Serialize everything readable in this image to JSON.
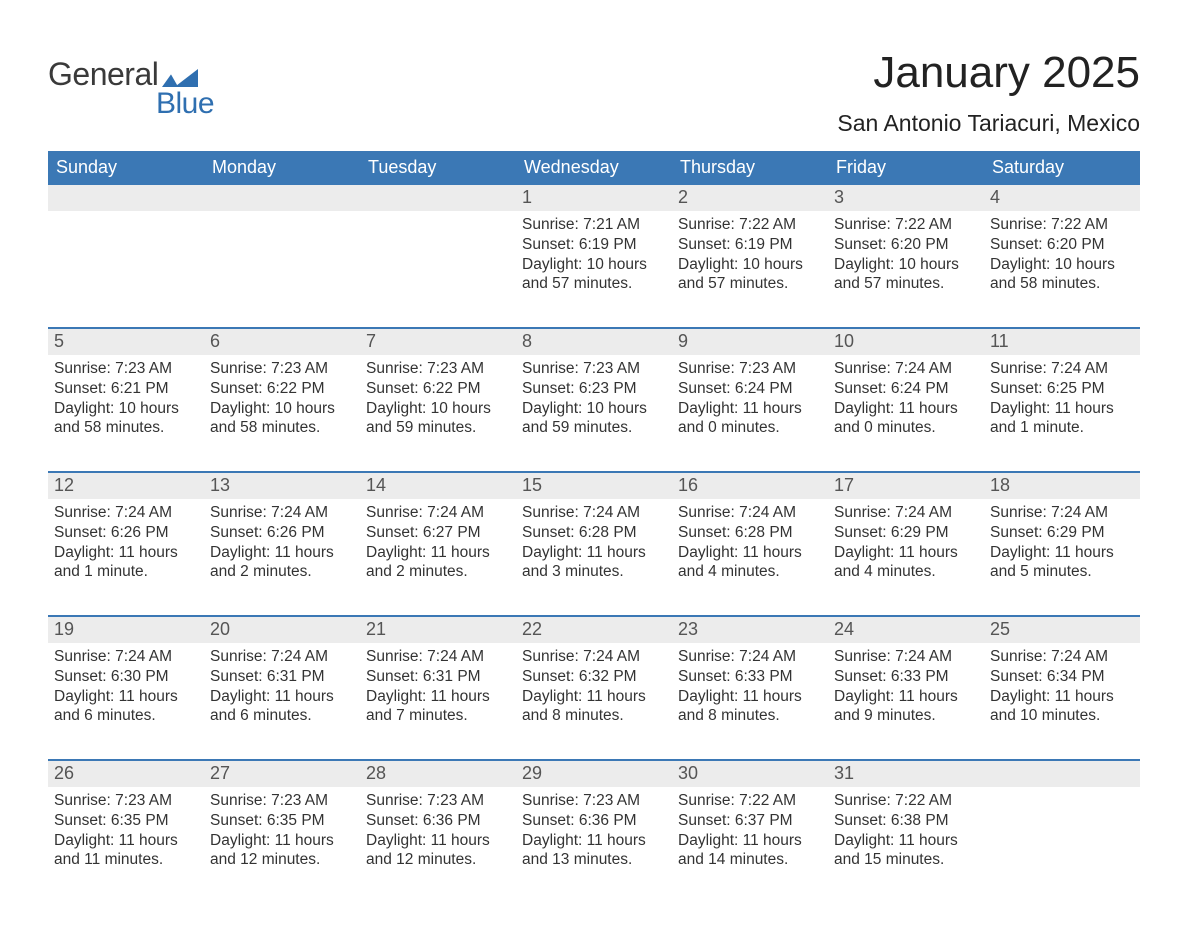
{
  "logo": {
    "line1": "General",
    "line2": "Blue",
    "accent": "#2f6fb0",
    "text": "#3a3a3a"
  },
  "title": "January 2025",
  "location": "San Antonio Tariacuri, Mexico",
  "colors": {
    "header_bg": "#3b78b5",
    "header_fg": "#ffffff",
    "daynum_bg": "#ececec",
    "week_divider": "#3b78b5",
    "body_text": "#333333",
    "page_bg": "#ffffff"
  },
  "fonts": {
    "title_pt": 44,
    "location_pt": 23,
    "header_pt": 18,
    "daynum_pt": 18,
    "body_pt": 15.5
  },
  "weekdays": [
    "Sunday",
    "Monday",
    "Tuesday",
    "Wednesday",
    "Thursday",
    "Friday",
    "Saturday"
  ],
  "labels": {
    "sunrise": "Sunrise:",
    "sunset": "Sunset:",
    "daylight": "Daylight:"
  },
  "weeks": [
    [
      null,
      null,
      null,
      {
        "n": "1",
        "sunrise": "7:21 AM",
        "sunset": "6:19 PM",
        "daylight": "10 hours and 57 minutes."
      },
      {
        "n": "2",
        "sunrise": "7:22 AM",
        "sunset": "6:19 PM",
        "daylight": "10 hours and 57 minutes."
      },
      {
        "n": "3",
        "sunrise": "7:22 AM",
        "sunset": "6:20 PM",
        "daylight": "10 hours and 57 minutes."
      },
      {
        "n": "4",
        "sunrise": "7:22 AM",
        "sunset": "6:20 PM",
        "daylight": "10 hours and 58 minutes."
      }
    ],
    [
      {
        "n": "5",
        "sunrise": "7:23 AM",
        "sunset": "6:21 PM",
        "daylight": "10 hours and 58 minutes."
      },
      {
        "n": "6",
        "sunrise": "7:23 AM",
        "sunset": "6:22 PM",
        "daylight": "10 hours and 58 minutes."
      },
      {
        "n": "7",
        "sunrise": "7:23 AM",
        "sunset": "6:22 PM",
        "daylight": "10 hours and 59 minutes."
      },
      {
        "n": "8",
        "sunrise": "7:23 AM",
        "sunset": "6:23 PM",
        "daylight": "10 hours and 59 minutes."
      },
      {
        "n": "9",
        "sunrise": "7:23 AM",
        "sunset": "6:24 PM",
        "daylight": "11 hours and 0 minutes."
      },
      {
        "n": "10",
        "sunrise": "7:24 AM",
        "sunset": "6:24 PM",
        "daylight": "11 hours and 0 minutes."
      },
      {
        "n": "11",
        "sunrise": "7:24 AM",
        "sunset": "6:25 PM",
        "daylight": "11 hours and 1 minute."
      }
    ],
    [
      {
        "n": "12",
        "sunrise": "7:24 AM",
        "sunset": "6:26 PM",
        "daylight": "11 hours and 1 minute."
      },
      {
        "n": "13",
        "sunrise": "7:24 AM",
        "sunset": "6:26 PM",
        "daylight": "11 hours and 2 minutes."
      },
      {
        "n": "14",
        "sunrise": "7:24 AM",
        "sunset": "6:27 PM",
        "daylight": "11 hours and 2 minutes."
      },
      {
        "n": "15",
        "sunrise": "7:24 AM",
        "sunset": "6:28 PM",
        "daylight": "11 hours and 3 minutes."
      },
      {
        "n": "16",
        "sunrise": "7:24 AM",
        "sunset": "6:28 PM",
        "daylight": "11 hours and 4 minutes."
      },
      {
        "n": "17",
        "sunrise": "7:24 AM",
        "sunset": "6:29 PM",
        "daylight": "11 hours and 4 minutes."
      },
      {
        "n": "18",
        "sunrise": "7:24 AM",
        "sunset": "6:29 PM",
        "daylight": "11 hours and 5 minutes."
      }
    ],
    [
      {
        "n": "19",
        "sunrise": "7:24 AM",
        "sunset": "6:30 PM",
        "daylight": "11 hours and 6 minutes."
      },
      {
        "n": "20",
        "sunrise": "7:24 AM",
        "sunset": "6:31 PM",
        "daylight": "11 hours and 6 minutes."
      },
      {
        "n": "21",
        "sunrise": "7:24 AM",
        "sunset": "6:31 PM",
        "daylight": "11 hours and 7 minutes."
      },
      {
        "n": "22",
        "sunrise": "7:24 AM",
        "sunset": "6:32 PM",
        "daylight": "11 hours and 8 minutes."
      },
      {
        "n": "23",
        "sunrise": "7:24 AM",
        "sunset": "6:33 PM",
        "daylight": "11 hours and 8 minutes."
      },
      {
        "n": "24",
        "sunrise": "7:24 AM",
        "sunset": "6:33 PM",
        "daylight": "11 hours and 9 minutes."
      },
      {
        "n": "25",
        "sunrise": "7:24 AM",
        "sunset": "6:34 PM",
        "daylight": "11 hours and 10 minutes."
      }
    ],
    [
      {
        "n": "26",
        "sunrise": "7:23 AM",
        "sunset": "6:35 PM",
        "daylight": "11 hours and 11 minutes."
      },
      {
        "n": "27",
        "sunrise": "7:23 AM",
        "sunset": "6:35 PM",
        "daylight": "11 hours and 12 minutes."
      },
      {
        "n": "28",
        "sunrise": "7:23 AM",
        "sunset": "6:36 PM",
        "daylight": "11 hours and 12 minutes."
      },
      {
        "n": "29",
        "sunrise": "7:23 AM",
        "sunset": "6:36 PM",
        "daylight": "11 hours and 13 minutes."
      },
      {
        "n": "30",
        "sunrise": "7:22 AM",
        "sunset": "6:37 PM",
        "daylight": "11 hours and 14 minutes."
      },
      {
        "n": "31",
        "sunrise": "7:22 AM",
        "sunset": "6:38 PM",
        "daylight": "11 hours and 15 minutes."
      },
      null
    ]
  ]
}
